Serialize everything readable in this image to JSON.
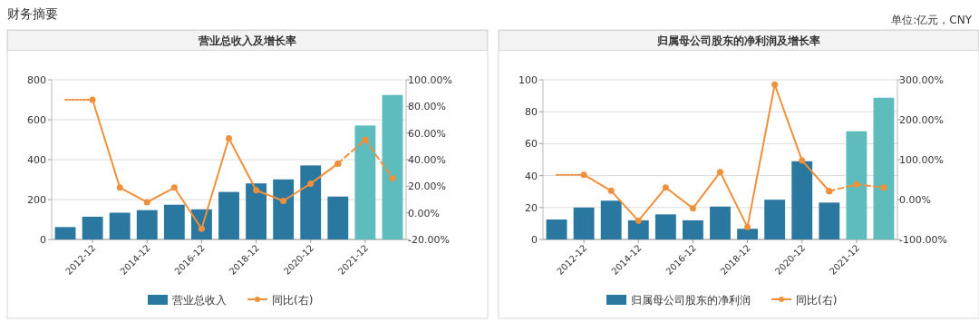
{
  "chart_data": [
    {
      "type": "bar",
      "title": "营业总收入及增长率",
      "annotations": [
        "财务摘要"
      ],
      "categories": [
        null,
        "2012-12",
        null,
        "2014-12",
        null,
        "2016-12",
        null,
        "2018-12",
        null,
        "2020-12",
        null,
        "2021-12",
        null
      ],
      "series": [
        {
          "name": "营业总收入",
          "color": "#2a77a0",
          "colors": [
            "#2a77a0",
            "#2a77a0",
            "#2a77a0",
            "#2a77a0",
            "#2a77a0",
            "#2a77a0",
            "#2a77a0",
            "#2a77a0",
            "#2a77a0",
            "#2a77a0",
            "#2a77a0",
            "#5ebcbc",
            "#5ebcbc"
          ],
          "values": [
            62,
            114,
            134,
            147,
            174,
            151,
            238,
            281,
            301,
            371,
            215,
            571,
            724
          ]
        },
        {
          "name": "同比(右)",
          "type": "line",
          "axis": "y2",
          "color": "#f0903a",
          "marker": "circle",
          "line_style": "solid",
          "values": [
            null,
            85,
            19,
            8,
            19,
            -12,
            56,
            17,
            9,
            22,
            37,
            null,
            null
          ]
        },
        {
          "type": "line",
          "axis": "y2",
          "color": "#f0903a",
          "marker": "circle",
          "line_style": "dashed",
          "values": [
            null,
            null,
            null,
            null,
            null,
            null,
            null,
            null,
            null,
            null,
            37,
            55,
            26
          ]
        },
        {
          "type": "line",
          "axis": "y2",
          "color": "#f0903a",
          "line_style": "dotted",
          "values": [
            85,
            85,
            null,
            null,
            null,
            null,
            null,
            null,
            null,
            null,
            null,
            null,
            null
          ]
        }
      ],
      "ylim": [
        0,
        800
      ],
      "yticks": [
        0,
        200,
        400,
        600,
        800
      ],
      "y2lim": [
        -20,
        100
      ],
      "y2ticks": [
        {
          "value": -20,
          "label": "-20.00%"
        },
        {
          "value": 0,
          "label": "0.00%"
        },
        {
          "value": 20,
          "label": "20.00%"
        },
        {
          "value": 40,
          "label": "40.00%"
        },
        {
          "value": 60,
          "label": "60.00%"
        },
        {
          "value": 80,
          "label": "80.00%"
        },
        {
          "value": 100,
          "label": "100.00%"
        }
      ],
      "grid": "y",
      "legend": "bottom"
    },
    {
      "type": "bar",
      "title": "归属母公司股东的净利润及增长率",
      "annotations": [
        "单位:亿元，CNY"
      ],
      "categories": [
        null,
        "2012-12",
        null,
        "2014-12",
        null,
        "2016-12",
        null,
        "2018-12",
        null,
        "2020-12",
        null,
        "2021-12",
        null
      ],
      "series": [
        {
          "name": "归属母公司股东的净利润",
          "color": "#2a77a0",
          "colors": [
            "#2a77a0",
            "#2a77a0",
            "#2a77a0",
            "#2a77a0",
            "#2a77a0",
            "#2a77a0",
            "#2a77a0",
            "#2a77a0",
            "#2a77a0",
            "#2a77a0",
            "#2a77a0",
            "#5ebcbc",
            "#5ebcbc"
          ],
          "values": [
            12.5,
            20,
            24.3,
            12,
            15.7,
            12,
            20.6,
            6.7,
            24.9,
            49,
            23.1,
            67.8,
            88.8
          ]
        },
        {
          "name": "同比(右)",
          "type": "line",
          "axis": "y2",
          "color": "#f0903a",
          "marker": "circle",
          "line_style": "solid",
          "values": [
            null,
            62,
            22,
            -53,
            30,
            -22,
            69,
            -69,
            288,
            98,
            21,
            null,
            null
          ]
        },
        {
          "type": "line",
          "axis": "y2",
          "color": "#f0903a",
          "marker": "circle",
          "line_style": "dashed",
          "values": [
            null,
            null,
            null,
            null,
            null,
            null,
            null,
            null,
            null,
            null,
            21,
            38,
            30
          ]
        },
        {
          "type": "line",
          "axis": "y2",
          "color": "#f0903a",
          "line_style": "dotted",
          "values": [
            62,
            62,
            null,
            null,
            null,
            null,
            null,
            null,
            null,
            null,
            null,
            null,
            null
          ]
        }
      ],
      "ylim": [
        0,
        100
      ],
      "yticks": [
        0,
        20,
        40,
        60,
        80,
        100
      ],
      "y2lim": [
        -100,
        300
      ],
      "y2ticks": [
        {
          "value": -100,
          "label": "-100.00%"
        },
        {
          "value": 0,
          "label": "0.00%"
        },
        {
          "value": 100,
          "label": "100.00%"
        },
        {
          "value": 200,
          "label": "200.00%"
        },
        {
          "value": 300,
          "label": "300.00%"
        }
      ],
      "grid": "y",
      "legend": "bottom"
    }
  ]
}
